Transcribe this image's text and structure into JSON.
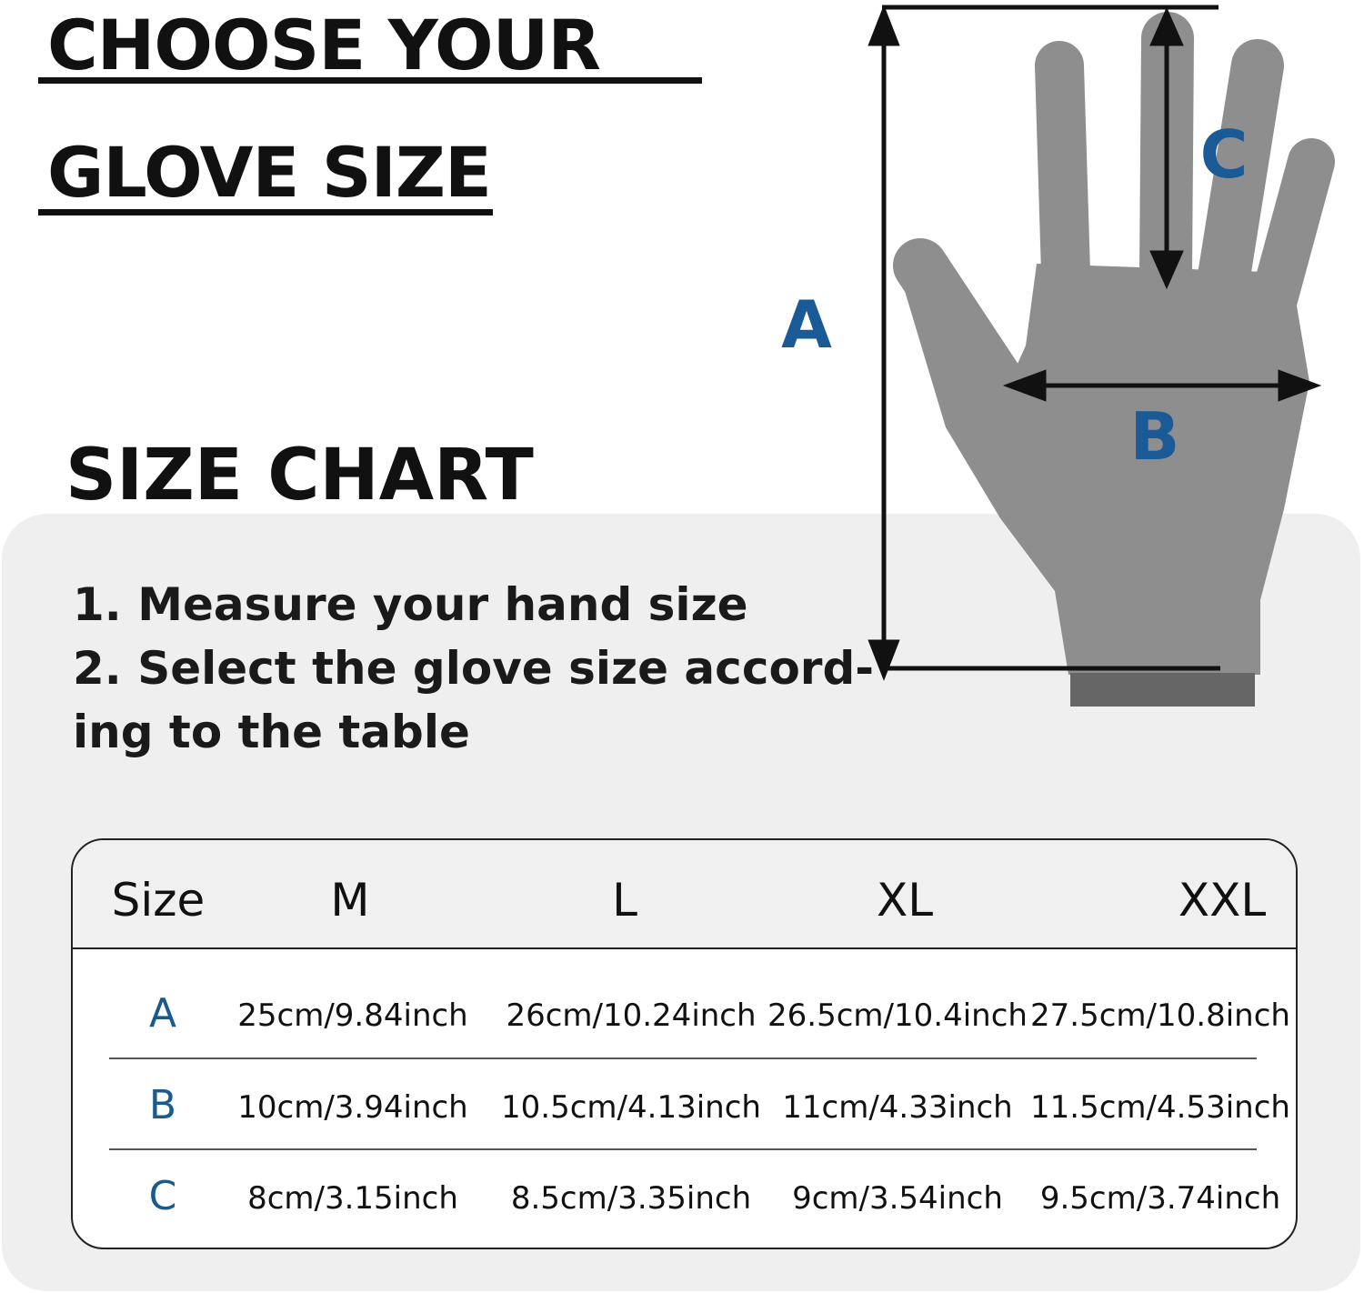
{
  "header": {
    "title_line1": "CHOOSE YOUR",
    "title_line2": "GLOVE SIZE"
  },
  "diagram": {
    "labels": {
      "a": "A",
      "b": "B",
      "c": "C"
    },
    "colors": {
      "hand": "#8e8e8e",
      "cuff": "#666666",
      "label": "#1a5a96"
    }
  },
  "size_chart": {
    "title": "SIZE CHART",
    "instructions": [
      "1. Measure your hand size",
      "2. Select the glove size accord-",
      "ing to the table"
    ],
    "columns": [
      "Size",
      "M",
      "L",
      "XL",
      "XXL"
    ],
    "rows": [
      {
        "label": "A",
        "values": [
          "25cm/9.84inch",
          "26cm/10.24inch",
          "26.5cm/10.4inch",
          "27.5cm/10.8inch"
        ]
      },
      {
        "label": "B",
        "values": [
          "10cm/3.94inch",
          "10.5cm/4.13inch",
          "11cm/4.33inch",
          "11.5cm/4.53inch"
        ]
      },
      {
        "label": "C",
        "values": [
          "8cm/3.15inch",
          "8.5cm/3.35inch",
          "9cm/3.54inch",
          "9.5cm/3.74inch"
        ]
      }
    ]
  }
}
